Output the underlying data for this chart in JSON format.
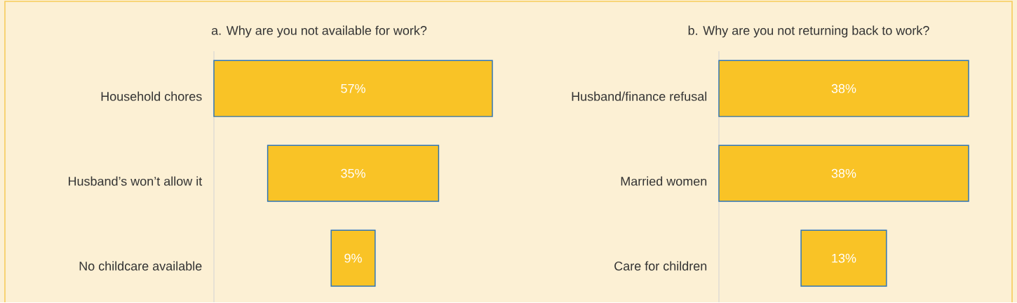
{
  "chart_data": [
    {
      "type": "other",
      "title": "a. Why are you not available for work?",
      "categories": [
        "Household chores",
        "Husband’s won’t allow it",
        "No childcare available"
      ],
      "values": [
        57,
        35,
        9
      ],
      "value_labels": [
        "57%",
        "35%",
        "9%"
      ],
      "colors": [
        "#f9c326",
        "#f9c326",
        "#f9c326"
      ]
    },
    {
      "type": "other",
      "title": "b. Why are you not returning back to work?",
      "categories": [
        "Husband/finance refusal",
        "Married women",
        "Care for children"
      ],
      "values": [
        38,
        38,
        13
      ],
      "value_labels": [
        "38%",
        "38%",
        "13%"
      ],
      "colors": [
        "#f9c326",
        "#f9c326",
        "#f9c326"
      ]
    }
  ]
}
